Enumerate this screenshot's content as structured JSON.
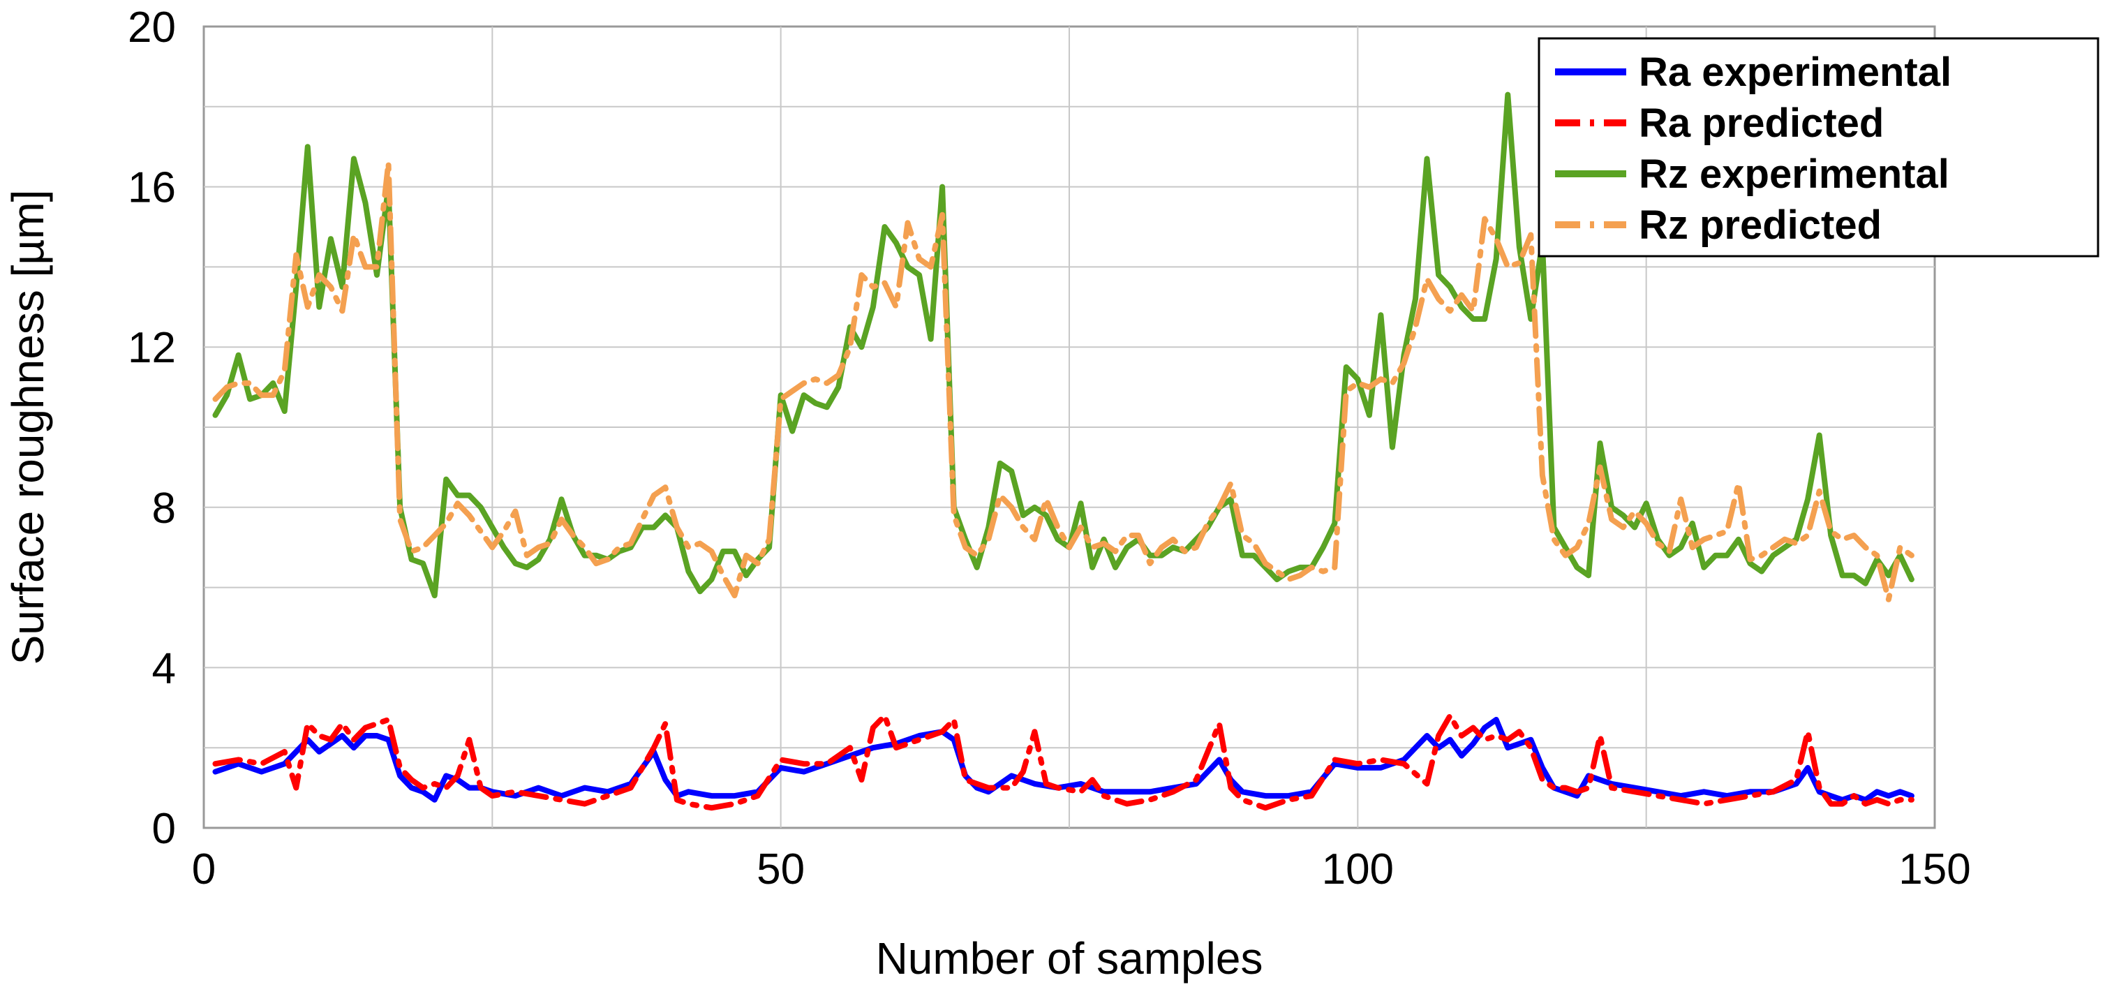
{
  "chart_data": {
    "type": "line",
    "xlabel": "Number of samples",
    "ylabel": "Surface roughness [µm]",
    "xlim": [
      0,
      150
    ],
    "ylim": [
      0,
      20
    ],
    "xticks": [
      0,
      50,
      100,
      150
    ],
    "yticks": [
      0,
      4,
      8,
      12,
      16,
      20
    ],
    "grid": true,
    "legend_position": "top-right",
    "series": [
      {
        "name": "Ra experimental",
        "color": "#0000ff",
        "style": "solid",
        "x": [
          1,
          3,
          5,
          7,
          9,
          10,
          11,
          12,
          13,
          14,
          15,
          16,
          17,
          18,
          19,
          20,
          21,
          22,
          23,
          24,
          25,
          27,
          29,
          31,
          33,
          35,
          37,
          39,
          40,
          41,
          42,
          44,
          46,
          48,
          50,
          52,
          54,
          56,
          58,
          60,
          62,
          64,
          65,
          66,
          67,
          68,
          70,
          72,
          74,
          76,
          78,
          80,
          82,
          84,
          86,
          88,
          89,
          90,
          92,
          94,
          96,
          98,
          100,
          102,
          104,
          106,
          107,
          108,
          109,
          110,
          111,
          112,
          113,
          114,
          115,
          116,
          117,
          118,
          119,
          120,
          122,
          124,
          126,
          128,
          130,
          132,
          134,
          136,
          138,
          139,
          140,
          141,
          142,
          143,
          144,
          145,
          146,
          147,
          148
        ],
        "values": [
          1.4,
          1.6,
          1.4,
          1.6,
          2.2,
          1.9,
          2.1,
          2.3,
          2.0,
          2.3,
          2.3,
          2.2,
          1.3,
          1.0,
          0.9,
          0.7,
          1.3,
          1.2,
          1.0,
          1.0,
          0.9,
          0.8,
          1.0,
          0.8,
          1.0,
          0.9,
          1.1,
          1.9,
          1.2,
          0.8,
          0.9,
          0.8,
          0.8,
          0.9,
          1.5,
          1.4,
          1.6,
          1.8,
          2.0,
          2.1,
          2.3,
          2.4,
          2.2,
          1.3,
          1.0,
          0.9,
          1.3,
          1.1,
          1.0,
          1.1,
          0.9,
          0.9,
          0.9,
          1.0,
          1.1,
          1.7,
          1.2,
          0.9,
          0.8,
          0.8,
          0.9,
          1.6,
          1.5,
          1.5,
          1.7,
          2.3,
          2.0,
          2.2,
          1.8,
          2.1,
          2.5,
          2.7,
          2.0,
          2.1,
          2.2,
          1.5,
          1.0,
          0.9,
          0.8,
          1.3,
          1.1,
          1.0,
          0.9,
          0.8,
          0.9,
          0.8,
          0.9,
          0.9,
          1.1,
          1.5,
          0.9,
          0.8,
          0.7,
          0.8,
          0.7,
          0.9,
          0.8,
          0.9,
          0.8
        ]
      },
      {
        "name": "Ra predicted",
        "color": "#ff0000",
        "style": "dashdot",
        "x": [
          1,
          3,
          5,
          7,
          8,
          9,
          10,
          11,
          12,
          13,
          14,
          15,
          16,
          17,
          18,
          19,
          20,
          21,
          22,
          23,
          24,
          25,
          27,
          29,
          31,
          33,
          35,
          37,
          39,
          40,
          41,
          42,
          44,
          46,
          48,
          50,
          52,
          54,
          56,
          57,
          58,
          59,
          60,
          62,
          64,
          65,
          66,
          67,
          68,
          70,
          71,
          72,
          73,
          74,
          76,
          77,
          78,
          80,
          82,
          84,
          86,
          88,
          89,
          90,
          92,
          94,
          96,
          98,
          100,
          102,
          104,
          106,
          107,
          108,
          109,
          110,
          111,
          112,
          113,
          114,
          115,
          116,
          117,
          118,
          119,
          120,
          121,
          122,
          124,
          126,
          128,
          130,
          132,
          134,
          136,
          138,
          139,
          140,
          141,
          142,
          143,
          144,
          145,
          146,
          147,
          148
        ],
        "values": [
          1.6,
          1.7,
          1.6,
          1.9,
          1.0,
          2.6,
          2.3,
          2.2,
          2.6,
          2.2,
          2.5,
          2.6,
          2.7,
          1.5,
          1.2,
          1.0,
          1.1,
          1.0,
          1.3,
          2.2,
          1.0,
          0.8,
          0.9,
          0.8,
          0.7,
          0.6,
          0.8,
          1.0,
          2.0,
          2.6,
          0.7,
          0.6,
          0.5,
          0.6,
          0.8,
          1.7,
          1.6,
          1.6,
          2.0,
          1.2,
          2.5,
          2.8,
          2.0,
          2.2,
          2.4,
          2.7,
          1.2,
          1.1,
          1.0,
          1.0,
          1.4,
          2.4,
          1.1,
          1.0,
          0.9,
          1.2,
          0.8,
          0.6,
          0.7,
          0.9,
          1.2,
          2.6,
          1.0,
          0.7,
          0.5,
          0.7,
          0.8,
          1.7,
          1.6,
          1.7,
          1.6,
          1.1,
          2.3,
          2.8,
          2.3,
          2.5,
          2.2,
          2.3,
          2.2,
          2.4,
          2.0,
          1.2,
          1.0,
          1.0,
          0.9,
          1.0,
          2.3,
          1.0,
          0.9,
          0.8,
          0.7,
          0.6,
          0.7,
          0.8,
          0.9,
          1.2,
          2.4,
          1.0,
          0.6,
          0.6,
          0.8,
          0.6,
          0.7,
          0.6,
          0.7,
          0.7
        ]
      },
      {
        "name": "Rz experimental",
        "color": "#5aa323",
        "style": "solid",
        "x": [
          1,
          2,
          3,
          4,
          5,
          6,
          7,
          8,
          9,
          10,
          11,
          12,
          13,
          14,
          15,
          16,
          17,
          18,
          19,
          20,
          21,
          22,
          23,
          24,
          25,
          26,
          27,
          28,
          29,
          30,
          31,
          32,
          33,
          34,
          35,
          36,
          37,
          38,
          39,
          40,
          41,
          42,
          43,
          44,
          45,
          46,
          47,
          48,
          49,
          50,
          51,
          52,
          53,
          54,
          55,
          56,
          57,
          58,
          59,
          60,
          61,
          62,
          63,
          64,
          65,
          66,
          67,
          68,
          69,
          70,
          71,
          72,
          73,
          74,
          75,
          76,
          77,
          78,
          79,
          80,
          81,
          82,
          83,
          84,
          85,
          86,
          87,
          88,
          89,
          90,
          91,
          92,
          93,
          94,
          95,
          96,
          97,
          98,
          99,
          100,
          101,
          102,
          103,
          104,
          105,
          106,
          107,
          108,
          109,
          110,
          111,
          112,
          113,
          114,
          115,
          116,
          117,
          118,
          119,
          120,
          121,
          122,
          123,
          124,
          125,
          126,
          127,
          128,
          129,
          130,
          131,
          132,
          133,
          134,
          135,
          136,
          137,
          138,
          139,
          140,
          141,
          142,
          143,
          144,
          145,
          146,
          147,
          148
        ],
        "values": [
          10.3,
          10.8,
          11.8,
          10.7,
          10.8,
          11.1,
          10.4,
          13.5,
          17.0,
          13.0,
          14.7,
          13.5,
          16.7,
          15.6,
          13.8,
          16.0,
          8.0,
          6.7,
          6.6,
          5.8,
          8.7,
          8.3,
          8.3,
          8.0,
          7.5,
          7.0,
          6.6,
          6.5,
          6.7,
          7.2,
          8.2,
          7.3,
          6.8,
          6.8,
          6.7,
          6.9,
          7.0,
          7.5,
          7.5,
          7.8,
          7.5,
          6.4,
          5.9,
          6.2,
          6.9,
          6.9,
          6.3,
          6.7,
          7.0,
          10.8,
          9.9,
          10.8,
          10.6,
          10.5,
          11.0,
          12.5,
          12.0,
          13.0,
          15.0,
          14.6,
          14.0,
          13.8,
          12.2,
          16.0,
          8.0,
          7.2,
          6.5,
          7.5,
          9.1,
          8.9,
          7.8,
          8.0,
          7.8,
          7.2,
          7.0,
          8.1,
          6.5,
          7.2,
          6.5,
          7.0,
          7.2,
          6.8,
          6.8,
          7.0,
          6.9,
          7.2,
          7.5,
          8.0,
          8.2,
          6.8,
          6.8,
          6.5,
          6.2,
          6.4,
          6.5,
          6.5,
          7.0,
          7.6,
          11.5,
          11.2,
          10.3,
          12.8,
          9.5,
          11.8,
          13.2,
          16.7,
          13.8,
          13.5,
          13.0,
          12.7,
          12.7,
          14.2,
          18.3,
          14.5,
          12.7,
          14.6,
          7.5,
          7.0,
          6.5,
          6.3,
          9.6,
          8.0,
          7.8,
          7.5,
          8.1,
          7.2,
          6.8,
          7.0,
          7.6,
          6.5,
          6.8,
          6.8,
          7.2,
          6.6,
          6.4,
          6.8,
          7.0,
          7.2,
          8.2,
          9.8,
          7.3,
          6.3,
          6.3,
          6.1,
          6.7,
          6.3,
          6.8,
          6.2
        ]
      },
      {
        "name": "Rz predicted",
        "color": "#f4a050",
        "style": "dashdot",
        "x": [
          1,
          2,
          3,
          4,
          5,
          6,
          7,
          8,
          9,
          10,
          11,
          12,
          13,
          14,
          15,
          16,
          17,
          18,
          19,
          20,
          21,
          22,
          23,
          24,
          25,
          26,
          27,
          28,
          29,
          30,
          31,
          32,
          33,
          34,
          35,
          36,
          37,
          38,
          39,
          40,
          41,
          42,
          43,
          44,
          45,
          46,
          47,
          48,
          49,
          50,
          51,
          52,
          53,
          54,
          55,
          56,
          57,
          58,
          59,
          60,
          61,
          62,
          63,
          64,
          65,
          66,
          67,
          68,
          69,
          70,
          71,
          72,
          73,
          74,
          75,
          76,
          77,
          78,
          79,
          80,
          81,
          82,
          83,
          84,
          85,
          86,
          87,
          88,
          89,
          90,
          91,
          92,
          93,
          94,
          95,
          96,
          97,
          98,
          99,
          100,
          101,
          102,
          103,
          104,
          105,
          106,
          107,
          108,
          109,
          110,
          111,
          112,
          113,
          114,
          115,
          116,
          117,
          118,
          119,
          120,
          121,
          122,
          123,
          124,
          125,
          126,
          127,
          128,
          129,
          130,
          131,
          132,
          133,
          134,
          135,
          136,
          137,
          138,
          139,
          140,
          141,
          142,
          143,
          144,
          145,
          146,
          147,
          148
        ],
        "values": [
          10.7,
          11.0,
          11.1,
          11.1,
          10.8,
          10.8,
          11.4,
          14.3,
          13.0,
          13.8,
          13.5,
          12.9,
          14.8,
          14.0,
          14.0,
          16.6,
          7.7,
          6.9,
          7.0,
          7.3,
          7.6,
          8.1,
          7.8,
          7.4,
          7.0,
          7.4,
          7.9,
          6.8,
          7.0,
          7.1,
          7.7,
          7.3,
          7.0,
          6.6,
          6.7,
          7.0,
          7.1,
          7.7,
          8.3,
          8.5,
          7.5,
          7.0,
          7.1,
          6.9,
          6.3,
          5.8,
          6.8,
          6.6,
          7.2,
          10.7,
          10.9,
          11.1,
          11.2,
          11.1,
          11.3,
          12.0,
          13.8,
          13.5,
          13.6,
          13.0,
          15.1,
          14.2,
          14.0,
          15.3,
          7.8,
          7.0,
          6.8,
          7.2,
          8.3,
          8.0,
          7.5,
          7.2,
          8.2,
          7.5,
          7.0,
          7.5,
          7.0,
          7.1,
          6.9,
          7.3,
          7.3,
          6.6,
          7.0,
          7.2,
          6.9,
          7.0,
          7.6,
          8.0,
          8.6,
          7.3,
          7.1,
          6.6,
          6.4,
          6.2,
          6.3,
          6.5,
          6.4,
          6.5,
          10.9,
          11.1,
          11.0,
          11.2,
          11.1,
          11.6,
          12.5,
          13.7,
          13.2,
          12.9,
          13.3,
          12.9,
          15.2,
          14.7,
          14.0,
          14.1,
          14.8,
          8.8,
          7.2,
          6.8,
          7.0,
          7.6,
          9.0,
          7.7,
          7.5,
          7.9,
          7.6,
          7.1,
          6.9,
          8.2,
          7.0,
          7.2,
          7.3,
          7.4,
          8.6,
          6.7,
          6.8,
          7.0,
          7.2,
          7.1,
          7.3,
          8.4,
          7.4,
          7.2,
          7.3,
          7.0,
          6.8,
          5.7,
          7.0,
          6.8
        ]
      }
    ]
  }
}
